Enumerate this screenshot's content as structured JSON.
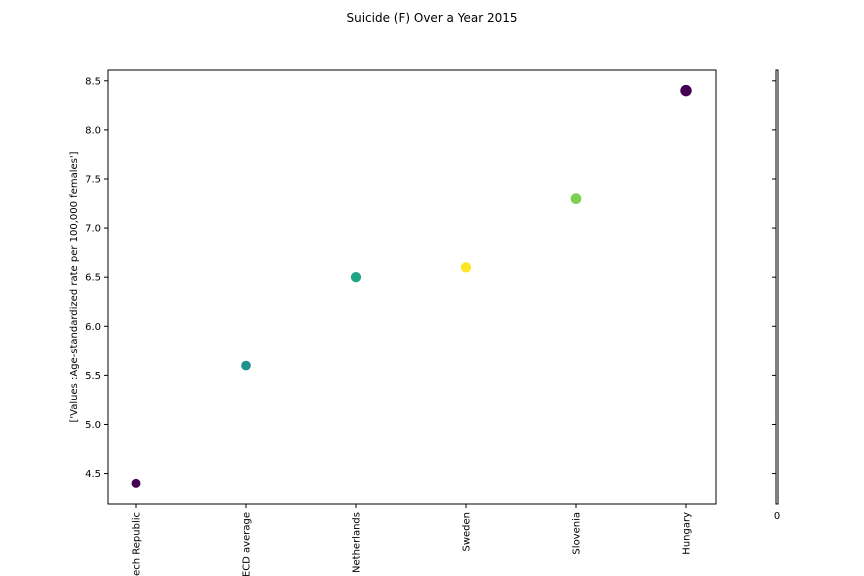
{
  "chart_data": {
    "type": "scatter",
    "title": "Suicide (F) Over a Year 2015",
    "xlabel": "",
    "ylabel": "['Values :Age-standardized rate per 100,000 females']",
    "categories": [
      "Czech Republic",
      "OECD average",
      "Netherlands",
      "Sweden",
      "Slovenia",
      "Hungary"
    ],
    "values": [
      4.4,
      5.6,
      6.5,
      6.6,
      7.3,
      8.4
    ],
    "colors": [
      "#440154",
      "#21918c",
      "#20a486",
      "#fde725",
      "#7ad151",
      "#440154"
    ],
    "y_ticks": [
      "4.5",
      "5.0",
      "5.5",
      "6.0",
      "6.5",
      "7.0",
      "7.5",
      "8.0",
      "8.5"
    ],
    "ylim": [
      4.19,
      8.61
    ],
    "grid": false,
    "colorbar_tick": "0"
  }
}
